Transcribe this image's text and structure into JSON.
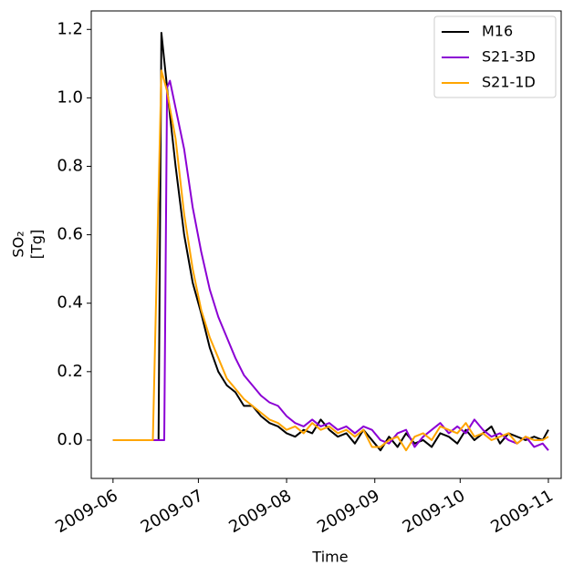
{
  "chart_data": {
    "type": "line",
    "xlabel": "Time",
    "ylabel": [
      "SO₂",
      "[Tg]"
    ],
    "x": [
      0,
      3,
      6,
      9,
      12,
      14,
      16,
      17,
      18,
      19,
      20,
      22,
      25,
      28,
      31,
      34,
      37,
      40,
      43,
      46,
      49,
      52,
      55,
      58,
      61,
      64,
      67,
      70,
      73,
      76,
      79,
      82,
      85,
      88,
      91,
      94,
      97,
      100,
      103,
      106,
      109,
      112,
      115,
      118,
      121,
      124,
      127,
      130,
      133,
      136,
      139,
      142,
      145,
      148,
      151,
      153
    ],
    "series": [
      {
        "name": "M16",
        "color": "#000000",
        "values": [
          0,
          0,
          0,
          0,
          0,
          0,
          0,
          1.19,
          1.11,
          1.03,
          0.95,
          0.8,
          0.6,
          0.46,
          0.37,
          0.27,
          0.2,
          0.16,
          0.14,
          0.1,
          0.1,
          0.07,
          0.05,
          0.04,
          0.02,
          0.01,
          0.03,
          0.02,
          0.06,
          0.03,
          0.01,
          0.02,
          -0.01,
          0.03,
          0.0,
          -0.03,
          0.01,
          -0.02,
          0.02,
          -0.01,
          0.0,
          -0.02,
          0.02,
          0.01,
          -0.01,
          0.03,
          0.0,
          0.02,
          0.04,
          -0.01,
          0.02,
          0.01,
          0.0,
          0.01,
          0.0,
          0.03
        ]
      },
      {
        "name": "S21-3D",
        "color": "#8b00d4",
        "values": [
          0,
          0,
          0,
          0,
          0,
          0,
          0,
          0,
          0,
          1.03,
          1.05,
          0.97,
          0.85,
          0.68,
          0.55,
          0.44,
          0.36,
          0.3,
          0.24,
          0.19,
          0.16,
          0.13,
          0.11,
          0.1,
          0.07,
          0.05,
          0.04,
          0.06,
          0.04,
          0.05,
          0.03,
          0.04,
          0.02,
          0.04,
          0.03,
          0.0,
          -0.01,
          0.02,
          0.03,
          -0.02,
          0.01,
          0.03,
          0.05,
          0.02,
          0.04,
          0.02,
          0.06,
          0.03,
          0.01,
          0.02,
          0.0,
          -0.01,
          0.01,
          -0.02,
          -0.01,
          -0.03
        ]
      },
      {
        "name": "S21-1D",
        "color": "#ffa500",
        "values": [
          0,
          0,
          0,
          0,
          0,
          0,
          0.72,
          1.08,
          1.05,
          1.02,
          0.97,
          0.88,
          0.66,
          0.5,
          0.38,
          0.3,
          0.24,
          0.18,
          0.15,
          0.12,
          0.1,
          0.08,
          0.06,
          0.05,
          0.03,
          0.04,
          0.02,
          0.05,
          0.03,
          0.04,
          0.02,
          0.03,
          0.01,
          0.03,
          -0.02,
          -0.02,
          0.0,
          0.01,
          -0.03,
          0.01,
          0.02,
          0.0,
          0.04,
          0.03,
          0.02,
          0.05,
          0.01,
          0.02,
          0.0,
          0.01,
          0.02,
          -0.01,
          0.01,
          0.0,
          0.0,
          0.01
        ]
      }
    ],
    "xlim": [
      -7.65,
      157.5
    ],
    "xticks": [
      {
        "value": 0,
        "label": "2009-06"
      },
      {
        "value": 30,
        "label": "2009-07"
      },
      {
        "value": 61,
        "label": "2009-08"
      },
      {
        "value": 92,
        "label": "2009-09"
      },
      {
        "value": 122,
        "label": "2009-10"
      },
      {
        "value": 153,
        "label": "2009-11"
      }
    ],
    "ylim": [
      -0.112,
      1.254
    ],
    "yticks": [
      {
        "value": 0,
        "label": "0.0"
      },
      {
        "value": 0.2,
        "label": "0.2"
      },
      {
        "value": 0.4,
        "label": "0.4"
      },
      {
        "value": 0.6,
        "label": "0.6"
      },
      {
        "value": 0.8,
        "label": "0.8"
      },
      {
        "value": 1.0,
        "label": "1.0"
      },
      {
        "value": 1.2,
        "label": "1.2"
      }
    ],
    "legend": "upper right"
  }
}
